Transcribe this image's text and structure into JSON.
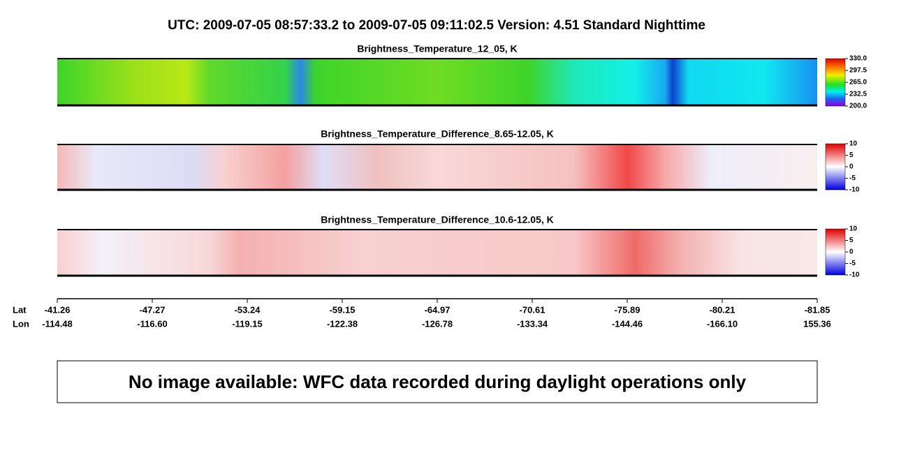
{
  "header": {
    "title": "UTC:  2009-07-05   08:57:33.2  to  2009-07-05   09:11:02.5    Version: 4.51  Standard Nighttime"
  },
  "panels": [
    {
      "title": "Brightness_Temperature_12_05, K",
      "colorbar_ticks": [
        "330.0",
        "297.5",
        "265.0",
        "232.5",
        "200.0"
      ]
    },
    {
      "title": "Brightness_Temperature_Difference_8.65-12.05, K",
      "colorbar_ticks": [
        "10",
        "5",
        "0",
        "-5",
        "-10"
      ]
    },
    {
      "title": "Brightness_Temperature_Difference_10.6-12.05, K",
      "colorbar_ticks": [
        "10",
        "5",
        "0",
        "-5",
        "-10"
      ]
    }
  ],
  "axis": {
    "lat_label": "Lat",
    "lon_label": "Lon",
    "lat": [
      "-41.26",
      "-47.27",
      "-53.24",
      "-59.15",
      "-64.97",
      "-70.61",
      "-75.89",
      "-80.21",
      "-81.85"
    ],
    "lon": [
      "-114.48",
      "-116.60",
      "-119.15",
      "-122.38",
      "-126.78",
      "-133.34",
      "-144.46",
      "-166.10",
      "155.36"
    ]
  },
  "message": "No image available: WFC data recorded during daylight operations only"
}
